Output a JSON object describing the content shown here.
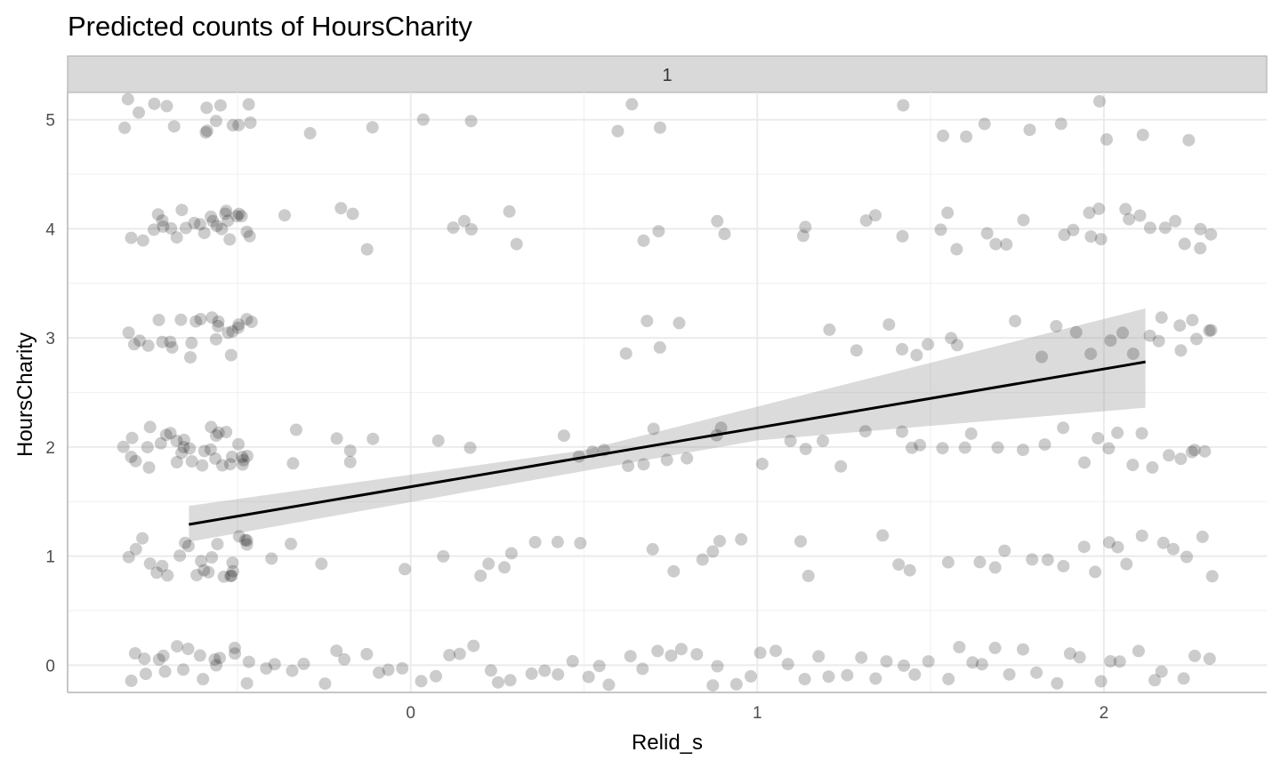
{
  "chart_data": {
    "type": "scatter",
    "title": "Predicted counts of HoursCharity",
    "facet_label": "1",
    "xlabel": "Relid_s",
    "ylabel": "HoursCharity",
    "xlim": [
      -0.99,
      2.47
    ],
    "ylim": [
      -0.25,
      5.25
    ],
    "x_ticks": [
      0,
      1,
      2
    ],
    "y_ticks": [
      0,
      1,
      2,
      3,
      4,
      5
    ],
    "grid": true,
    "colors": {
      "points": "#000000",
      "fit_line": "#000000",
      "ribbon": "#999999",
      "strip_fill": "#d9d9d9",
      "grid": "#ebebeb"
    },
    "points_note": "jittered scatter of observed counts (alpha ~0.2)",
    "scatter_series": [
      {
        "y": 5,
        "x": [
          -0.83,
          -0.82,
          -0.79,
          -0.73,
          -0.71,
          -0.69,
          -0.6,
          -0.59,
          -0.58,
          -0.56,
          -0.55,
          -0.52,
          -0.49,
          -0.48,
          -0.46,
          -0.3,
          -0.1,
          0.04,
          0.16,
          0.59,
          0.64,
          0.71,
          1.42,
          1.53,
          1.6,
          1.65,
          1.78,
          1.88,
          1.99,
          2.01,
          2.12,
          2.24
        ]
      },
      {
        "y": 4,
        "x": [
          -0.8,
          -0.77,
          -0.75,
          -0.73,
          -0.72,
          -0.7,
          -0.69,
          -0.68,
          -0.66,
          -0.64,
          -0.62,
          -0.61,
          -0.6,
          -0.58,
          -0.57,
          -0.56,
          -0.55,
          -0.54,
          -0.53,
          -0.52,
          -0.51,
          -0.5,
          -0.49,
          -0.48,
          -0.47,
          -0.45,
          -0.37,
          -0.21,
          -0.17,
          -0.12,
          0.13,
          0.15,
          0.17,
          0.28,
          0.3,
          0.67,
          0.71,
          0.89,
          0.91,
          1.14,
          1.15,
          1.3,
          1.34,
          1.41,
          1.53,
          1.56,
          1.58,
          1.66,
          1.7,
          1.73,
          1.76,
          1.88,
          1.92,
          1.95,
          1.97,
          1.99,
          2.0,
          2.06,
          2.08,
          2.11,
          2.14,
          2.17,
          2.2,
          2.24,
          2.27,
          2.29,
          2.31
        ]
      },
      {
        "y": 3,
        "x": [
          -0.82,
          -0.8,
          -0.78,
          -0.76,
          -0.74,
          -0.72,
          -0.7,
          -0.68,
          -0.66,
          -0.65,
          -0.63,
          -0.61,
          -0.6,
          -0.58,
          -0.57,
          -0.56,
          -0.55,
          -0.53,
          -0.52,
          -0.51,
          -0.5,
          -0.49,
          -0.48,
          -0.46,
          0.63,
          0.69,
          0.71,
          0.78,
          1.2,
          1.28,
          1.37,
          1.41,
          1.47,
          1.5,
          1.56,
          1.59,
          1.74,
          1.83,
          1.87,
          1.92,
          1.96,
          2.01,
          2.05,
          2.09,
          2.13,
          2.15,
          2.18,
          2.21,
          2.23,
          2.25,
          2.27,
          2.29,
          2.31
        ]
      },
      {
        "y": 2,
        "x": [
          -0.83,
          -0.81,
          -0.8,
          -0.78,
          -0.77,
          -0.75,
          -0.74,
          -0.73,
          -0.72,
          -0.7,
          -0.69,
          -0.68,
          -0.67,
          -0.66,
          -0.65,
          -0.64,
          -0.62,
          -0.61,
          -0.6,
          -0.59,
          -0.58,
          -0.57,
          -0.56,
          -0.55,
          -0.54,
          -0.53,
          -0.52,
          -0.51,
          -0.5,
          -0.49,
          -0.48,
          -0.47,
          -0.46,
          -0.35,
          -0.33,
          -0.2,
          -0.18,
          -0.16,
          -0.1,
          0.07,
          0.18,
          0.45,
          0.5,
          0.53,
          0.56,
          0.64,
          0.66,
          0.7,
          0.73,
          0.81,
          0.87,
          0.9,
          1.02,
          1.1,
          1.14,
          1.19,
          1.24,
          1.31,
          1.41,
          1.45,
          1.48,
          1.54,
          1.59,
          1.62,
          1.68,
          1.77,
          1.82,
          1.87,
          1.93,
          1.98,
          2.02,
          2.05,
          2.09,
          2.12,
          2.15,
          2.18,
          2.21,
          2.24,
          2.27,
          2.3
        ]
      },
      {
        "y": 1,
        "x": [
          -0.82,
          -0.8,
          -0.78,
          -0.76,
          -0.74,
          -0.72,
          -0.7,
          -0.68,
          -0.66,
          -0.64,
          -0.62,
          -0.61,
          -0.59,
          -0.58,
          -0.57,
          -0.56,
          -0.54,
          -0.53,
          -0.52,
          -0.51,
          -0.5,
          -0.49,
          -0.48,
          -0.47,
          -0.46,
          -0.4,
          -0.34,
          -0.27,
          -0.02,
          0.09,
          0.2,
          0.23,
          0.26,
          0.3,
          0.35,
          0.42,
          0.5,
          0.71,
          0.75,
          0.84,
          0.86,
          0.9,
          0.96,
          1.12,
          1.14,
          1.35,
          1.4,
          1.45,
          1.56,
          1.63,
          1.68,
          1.72,
          1.79,
          1.84,
          1.89,
          1.93,
          1.98,
          2.01,
          2.04,
          2.08,
          2.11,
          2.16,
          2.21,
          2.24,
          2.27,
          2.3
        ]
      },
      {
        "y": 0,
        "x": [
          -0.82,
          -0.8,
          -0.78,
          -0.76,
          -0.74,
          -0.72,
          -0.7,
          -0.68,
          -0.66,
          -0.64,
          -0.62,
          -0.6,
          -0.58,
          -0.56,
          -0.54,
          -0.52,
          -0.5,
          -0.48,
          -0.46,
          -0.42,
          -0.38,
          -0.34,
          -0.3,
          -0.26,
          -0.22,
          -0.18,
          -0.14,
          -0.1,
          -0.06,
          -0.02,
          0.02,
          0.06,
          0.1,
          0.14,
          0.18,
          0.22,
          0.26,
          0.3,
          0.34,
          0.38,
          0.42,
          0.46,
          0.5,
          0.54,
          0.58,
          0.62,
          0.66,
          0.7,
          0.74,
          0.78,
          0.82,
          0.86,
          0.9,
          0.94,
          0.98,
          1.02,
          1.06,
          1.1,
          1.14,
          1.18,
          1.22,
          1.26,
          1.3,
          1.34,
          1.38,
          1.42,
          1.46,
          1.5,
          1.54,
          1.58,
          1.62,
          1.66,
          1.7,
          1.74,
          1.78,
          1.82,
          1.86,
          1.9,
          1.94,
          1.98,
          2.02,
          2.06,
          2.1,
          2.14,
          2.18,
          2.22,
          2.26,
          2.3
        ]
      }
    ],
    "fit_line": {
      "x": [
        -0.64,
        2.12
      ],
      "y": [
        1.29,
        2.78
      ]
    },
    "confidence_ribbon": {
      "x": [
        -0.64,
        0.5,
        1.0,
        2.12
      ],
      "lower": [
        1.13,
        1.78,
        2.06,
        2.36
      ],
      "upper": [
        1.46,
        1.97,
        2.37,
        3.27
      ]
    }
  }
}
